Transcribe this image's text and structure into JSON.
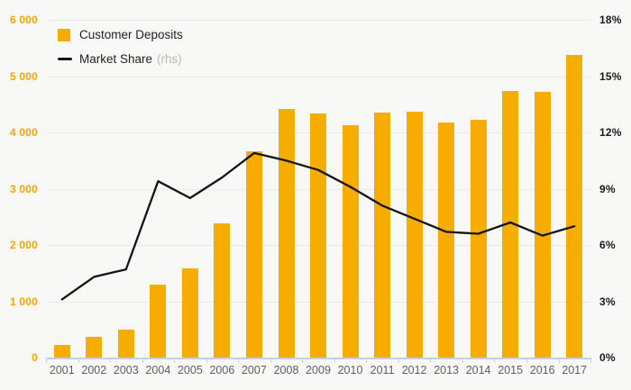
{
  "legend": {
    "deposits_label": "Customer Deposits",
    "share_label": "Market Share",
    "share_suffix": "(rhs)"
  },
  "chart_data": {
    "type": "bar",
    "subtype": "bar-line-combo",
    "title": "",
    "categories": [
      "2001",
      "2002",
      "2003",
      "2004",
      "2005",
      "2006",
      "2007",
      "2008",
      "2009",
      "2010",
      "2011",
      "2012",
      "2013",
      "2014",
      "2015",
      "2016",
      "2017"
    ],
    "series": [
      {
        "name": "Customer Deposits",
        "type": "bar",
        "axis": "left",
        "values": [
          230,
          370,
          490,
          1300,
          1590,
          2380,
          3660,
          4420,
          4340,
          4130,
          4360,
          4370,
          4180,
          4230,
          4740,
          4720,
          5380
        ]
      },
      {
        "name": "Market Share (rhs)",
        "type": "line",
        "axis": "right",
        "values": [
          3.1,
          4.3,
          4.7,
          9.4,
          8.5,
          9.6,
          10.9,
          10.5,
          10.0,
          9.1,
          8.1,
          7.4,
          6.7,
          6.6,
          7.2,
          6.5,
          7.0
        ]
      }
    ],
    "left_axis": {
      "min": 0,
      "max": 6000,
      "tick_labels": [
        "0",
        "1 000",
        "2 000",
        "3 000",
        "4 000",
        "5 000",
        "6 000"
      ]
    },
    "right_axis": {
      "min": 0,
      "max": 18,
      "tick_labels": [
        "0%",
        "3%",
        "6%",
        "9%",
        "12%",
        "15%",
        "18%"
      ]
    },
    "grid": true,
    "legend_position": "top-left"
  },
  "colors": {
    "bar": "#F7AC00",
    "line": "#151515",
    "left_tick_label": "#F0A50A",
    "right_tick_label": "#1A1A1A",
    "x_tick_label": "#5E5E5E",
    "gridline": "#EAEAEA",
    "axis_line": "#C7CFE5",
    "background": "#F8F8F7"
  }
}
